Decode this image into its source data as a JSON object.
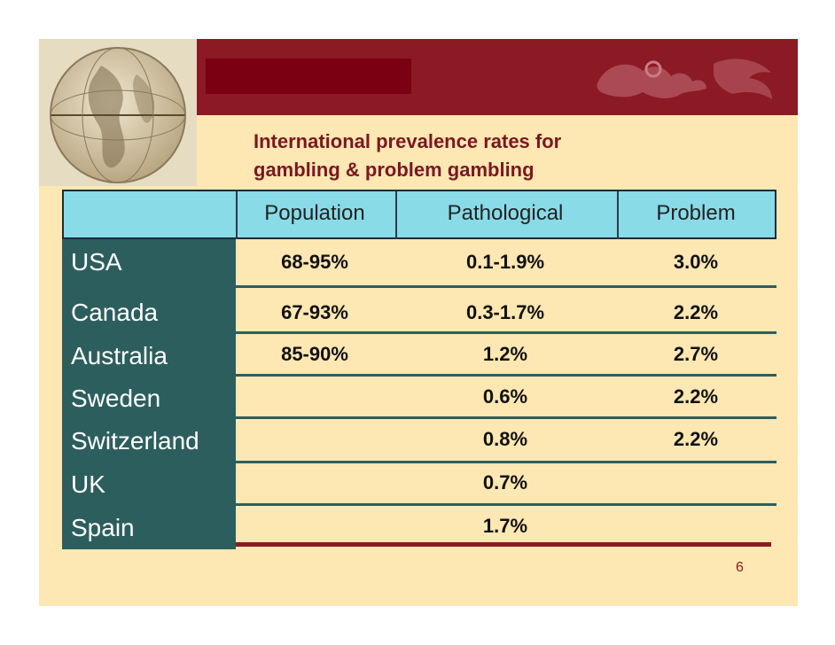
{
  "title_line1": "International prevalence rates for",
  "title_line2": "gambling & problem gambling",
  "headers": {
    "population": "Population",
    "pathological": "Pathological",
    "problem": "Problem"
  },
  "rows": [
    {
      "country": "USA",
      "population": "68-95%",
      "pathological": "0.1-1.9%",
      "problem": "3.0%"
    },
    {
      "country": "Canada",
      "population": "67-93%",
      "pathological": "0.3-1.7%",
      "problem": "2.2%"
    },
    {
      "country": "Australia",
      "population": "85-90%",
      "pathological": "1.2%",
      "problem": "2.7%"
    },
    {
      "country": "Sweden",
      "population": "",
      "pathological": "0.6%",
      "problem": "2.2%"
    },
    {
      "country": "Switzerland",
      "population": "",
      "pathological": "0.8%",
      "problem": "2.2%"
    },
    {
      "country": "UK",
      "population": "",
      "pathological": "0.7%",
      "problem": ""
    },
    {
      "country": "Spain",
      "population": "",
      "pathological": "1.7%",
      "problem": ""
    }
  ],
  "page_number": "6",
  "colors": {
    "background": "#fde7b2",
    "banner": "#8b1a24",
    "header": "#88dbe7",
    "country_column": "#2d5e5e"
  },
  "icons": [
    "globe-icon",
    "lion-logo-icon"
  ]
}
